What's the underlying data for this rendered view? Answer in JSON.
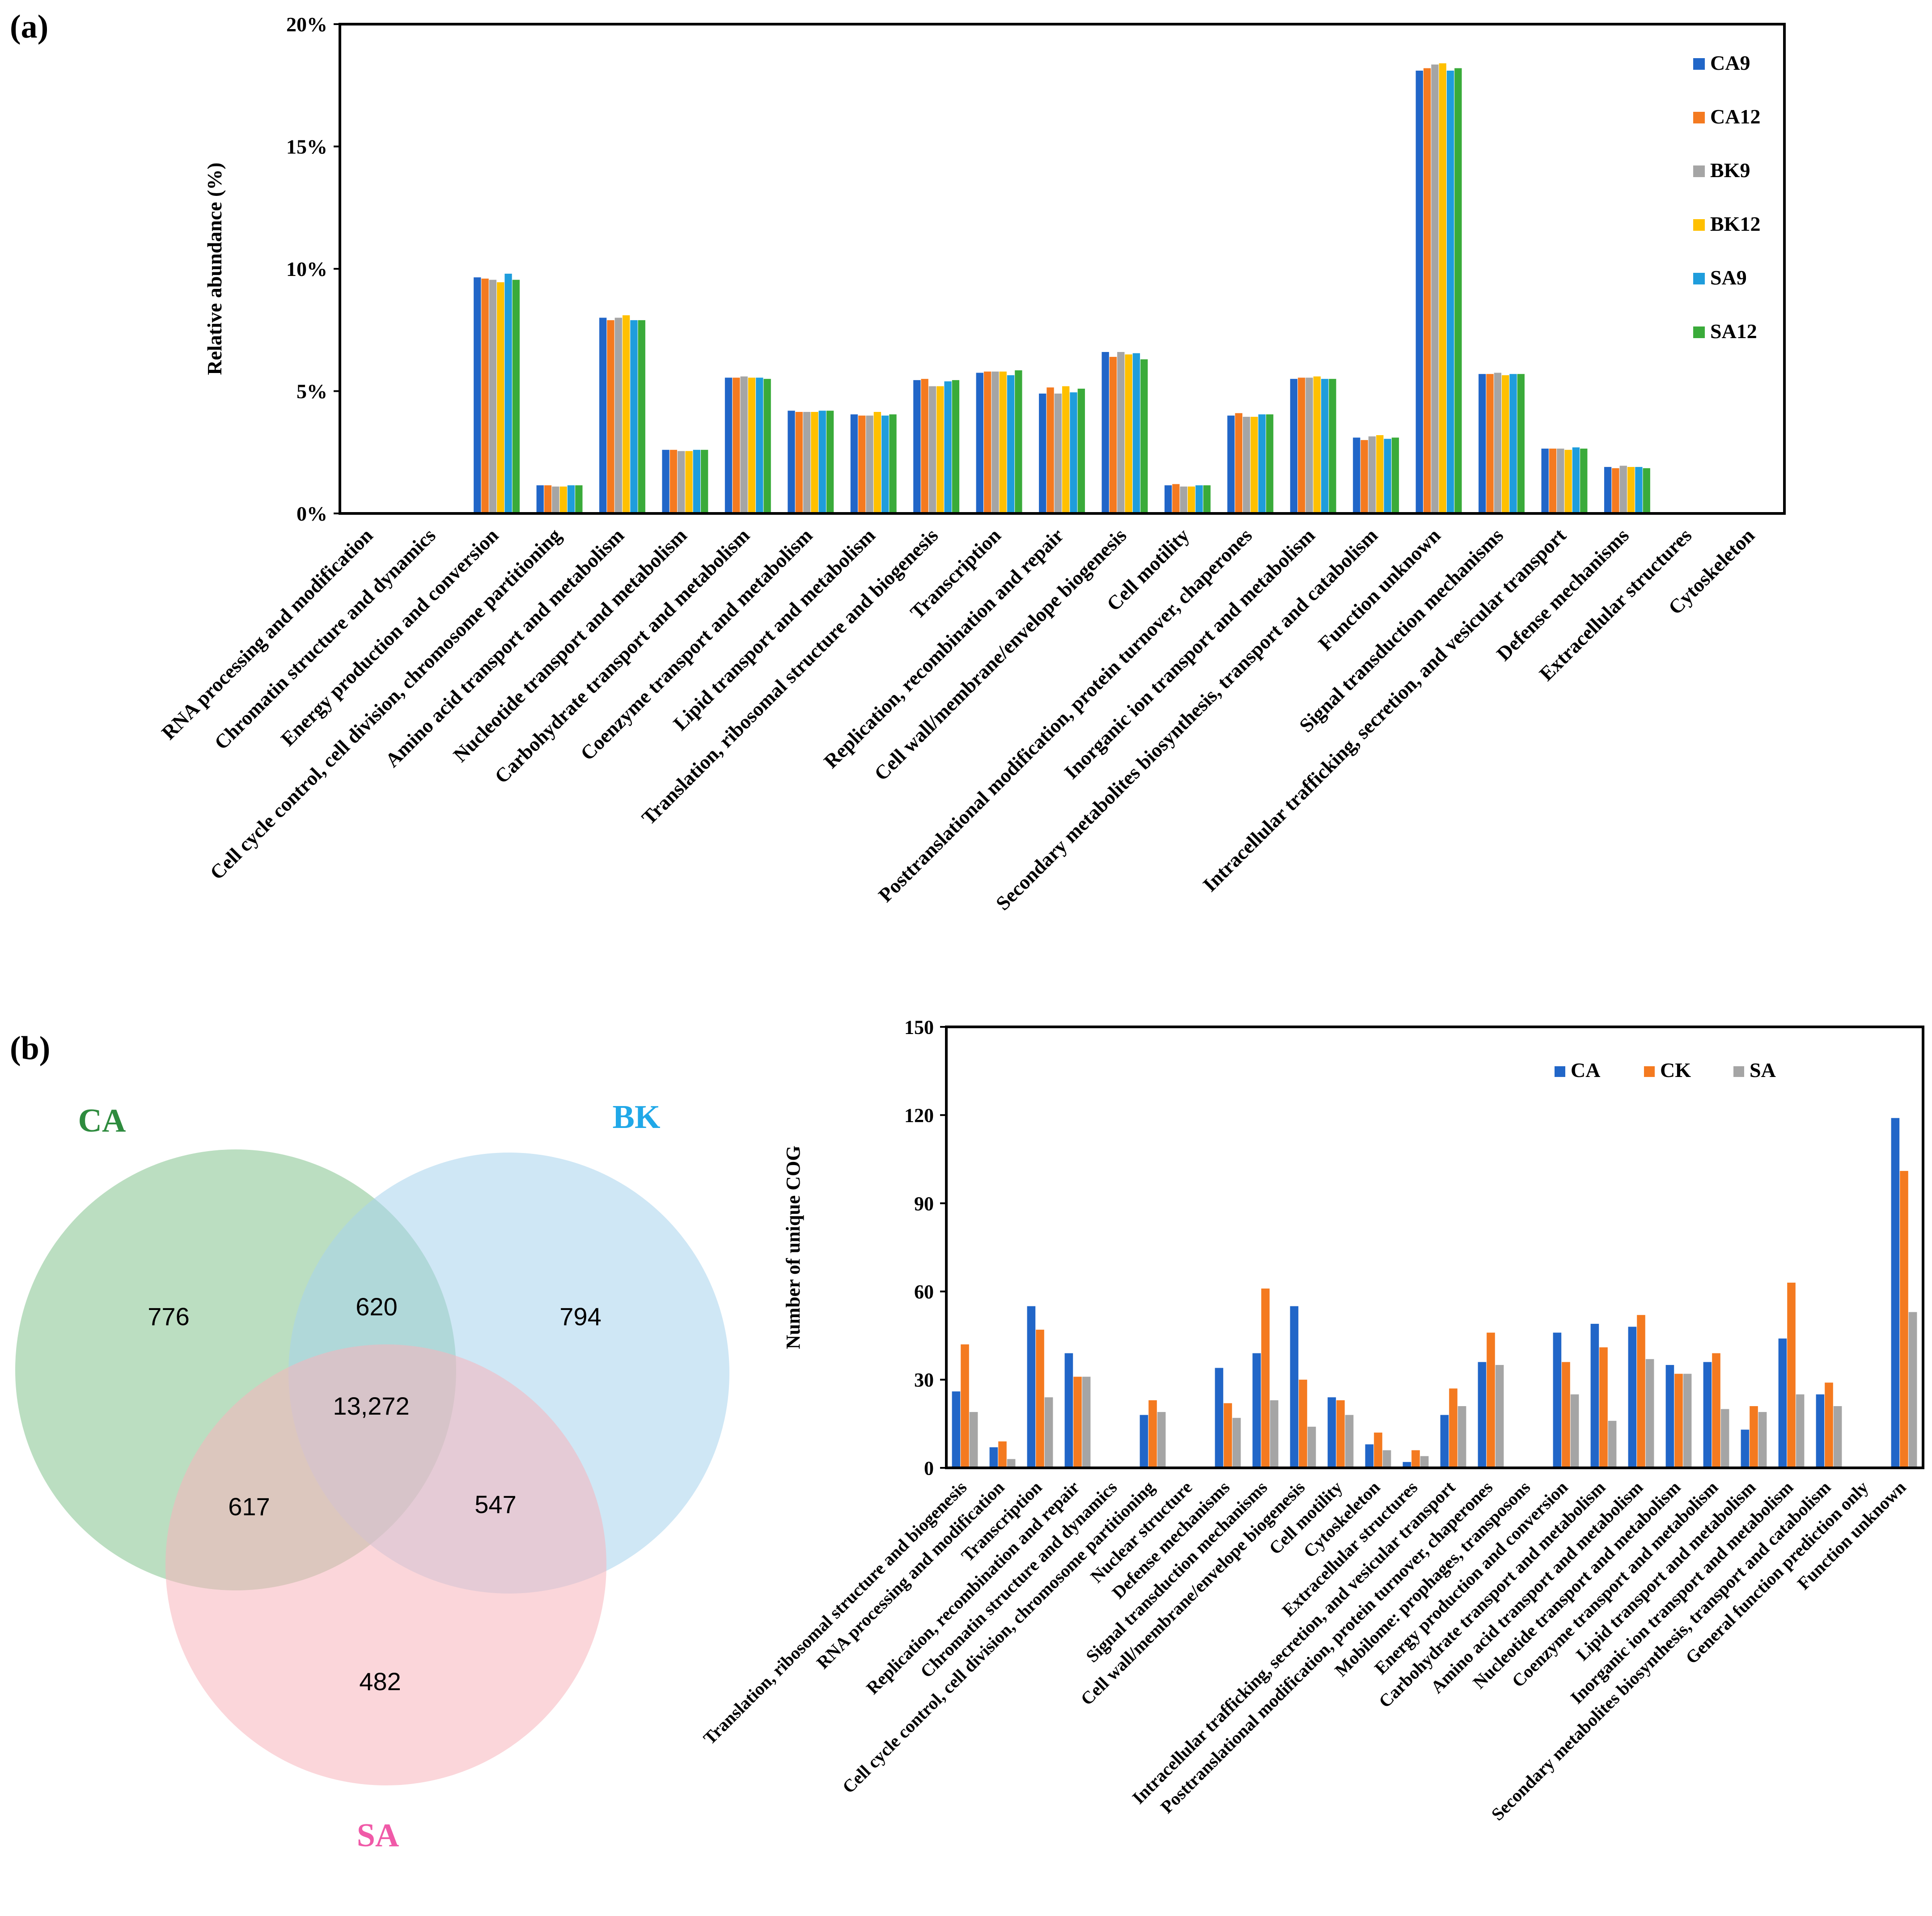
{
  "panel_a_label": "(a)",
  "panel_b_label": "(b)",
  "colors": {
    "CA9": "#2166c8",
    "CA12": "#f47a20",
    "BK9": "#a5a5a5",
    "BK12": "#ffc000",
    "SA9": "#1f9ddc",
    "SA12": "#3aab3a",
    "CA": "#2166c8",
    "CK": "#f47a20",
    "SA": "#a5a5a5",
    "venn_CA": "#a8d5b0",
    "venn_BK": "#a8d4ec",
    "venn_SA": "#f7b4bc",
    "venn_label_CA": "#2e8b3e",
    "venn_label_BK": "#20a8e8",
    "venn_label_SA": "#f05aa8"
  },
  "chart_data": [
    {
      "type": "bar",
      "panel": "(a)",
      "ylabel": "Relative abundance (%)",
      "ylim": [
        0,
        20
      ],
      "yticks": [
        "0%",
        "5%",
        "10%",
        "15%",
        "20%"
      ],
      "legend_position": "top-right",
      "categories": [
        "RNA processing and modification",
        "Chromatin structure and dynamics",
        "Energy production and conversion",
        "Cell cycle control, cell division, chromosome partitioning",
        "Amino acid transport and metabolism",
        "Nucleotide transport and metabolism",
        "Carbohydrate transport and metabolism",
        "Coenzyme transport and metabolism",
        "Lipid transport and metabolism",
        "Translation, ribosomal structure and biogenesis",
        "Transcription",
        "Replication, recombination and repair",
        "Cell wall/membrane/envelope biogenesis",
        "Cell motility",
        "Posttranslational modification, protein turnover, chaperones",
        "Inorganic ion transport and metabolism",
        "Secondary metabolites biosynthesis, transport and catabolism",
        "Function unknown",
        "Signal transduction mechanisms",
        "Intracellular trafficking, secretion, and vesicular transport",
        "Defense mechanisms",
        "Extracellular structures",
        "Cytoskeleton"
      ],
      "series": [
        {
          "name": "CA9",
          "values": [
            0.02,
            0.02,
            9.65,
            1.15,
            8.0,
            2.6,
            5.55,
            4.2,
            4.05,
            5.45,
            5.75,
            4.9,
            6.6,
            1.15,
            4.0,
            5.5,
            3.1,
            18.1,
            5.7,
            2.65,
            1.9,
            0.02,
            0.02
          ]
        },
        {
          "name": "CA12",
          "values": [
            0.02,
            0.02,
            9.6,
            1.15,
            7.9,
            2.6,
            5.55,
            4.15,
            4.0,
            5.5,
            5.8,
            5.15,
            6.4,
            1.2,
            4.1,
            5.55,
            3.0,
            18.2,
            5.7,
            2.65,
            1.85,
            0.02,
            0.02
          ]
        },
        {
          "name": "BK9",
          "values": [
            0.02,
            0.02,
            9.55,
            1.1,
            8.0,
            2.55,
            5.6,
            4.15,
            4.0,
            5.2,
            5.8,
            4.9,
            6.6,
            1.1,
            3.95,
            5.55,
            3.15,
            18.35,
            5.75,
            2.65,
            1.95,
            0.02,
            0.02
          ]
        },
        {
          "name": "BK12",
          "values": [
            0.02,
            0.02,
            9.45,
            1.1,
            8.1,
            2.55,
            5.55,
            4.15,
            4.15,
            5.2,
            5.8,
            5.2,
            6.5,
            1.1,
            3.95,
            5.6,
            3.2,
            18.4,
            5.65,
            2.6,
            1.9,
            0.02,
            0.02
          ]
        },
        {
          "name": "SA9",
          "values": [
            0.02,
            0.02,
            9.8,
            1.15,
            7.9,
            2.6,
            5.55,
            4.2,
            4.0,
            5.4,
            5.65,
            4.95,
            6.55,
            1.15,
            4.05,
            5.5,
            3.05,
            18.1,
            5.7,
            2.7,
            1.9,
            0.02,
            0.02
          ]
        },
        {
          "name": "SA12",
          "values": [
            0.02,
            0.02,
            9.55,
            1.15,
            7.9,
            2.6,
            5.5,
            4.2,
            4.05,
            5.45,
            5.85,
            5.1,
            6.3,
            1.15,
            4.05,
            5.5,
            3.1,
            18.2,
            5.7,
            2.65,
            1.85,
            0.02,
            0.02
          ]
        }
      ]
    },
    {
      "type": "venn",
      "panel": "(b)",
      "sets": [
        "CA",
        "BK",
        "SA"
      ],
      "regions": {
        "CA_only": "776",
        "BK_only": "794",
        "SA_only": "482",
        "CA_BK": "620",
        "CA_SA": "617",
        "BK_SA": "547",
        "CA_BK_SA": "13,272"
      }
    },
    {
      "type": "bar",
      "panel": "(b)",
      "ylabel": "Number of unique COG",
      "ylim": [
        0,
        150
      ],
      "yticks": [
        "0",
        "30",
        "60",
        "90",
        "120",
        "150"
      ],
      "legend_position": "top-right",
      "categories": [
        "Translation, ribosomal structure and biogenesis",
        "RNA processing and modification",
        "Transcription",
        "Replication, recombination and repair",
        "Chromatin structure and dynamics",
        "Cell cycle control, cell division, chromosome partitioning",
        "Nuclear structure",
        "Defense mechanisms",
        "Signal transduction mechanisms",
        "Cell wall/membrane/envelope biogenesis",
        "Cell motility",
        "Cytoskeleton",
        "Extracellular structures",
        "Intracellular trafficking, secretion, and vesicular transport",
        "Posttranslational modification, protein turnover, chaperones",
        "Mobilome: prophages, transposons",
        "Energy production and conversion",
        "Carbohydrate transport and metabolism",
        "Amino acid transport and metabolism",
        "Nucleotide transport and metabolism",
        "Coenzyme transport and metabolism",
        "Lipid transport and metabolism",
        "Inorganic ion transport and metabolism",
        "Secondary metabolites biosynthesis, transport and catabolism",
        "General function prediction only",
        "Function unknown"
      ],
      "series": [
        {
          "name": "CA",
          "values": [
            26,
            7,
            55,
            39,
            0,
            18,
            0,
            34,
            39,
            55,
            24,
            8,
            2,
            18,
            36,
            0,
            46,
            49,
            48,
            35,
            36,
            13,
            44,
            25,
            0,
            119
          ]
        },
        {
          "name": "CK",
          "values": [
            42,
            9,
            47,
            31,
            0,
            23,
            0,
            22,
            61,
            30,
            23,
            12,
            6,
            27,
            46,
            0,
            36,
            41,
            52,
            32,
            39,
            21,
            63,
            29,
            0,
            101
          ]
        },
        {
          "name": "SA",
          "values": [
            19,
            3,
            24,
            31,
            0,
            19,
            0,
            17,
            23,
            14,
            18,
            6,
            4,
            21,
            35,
            0,
            25,
            16,
            37,
            32,
            20,
            19,
            25,
            21,
            0,
            53
          ]
        }
      ]
    }
  ]
}
